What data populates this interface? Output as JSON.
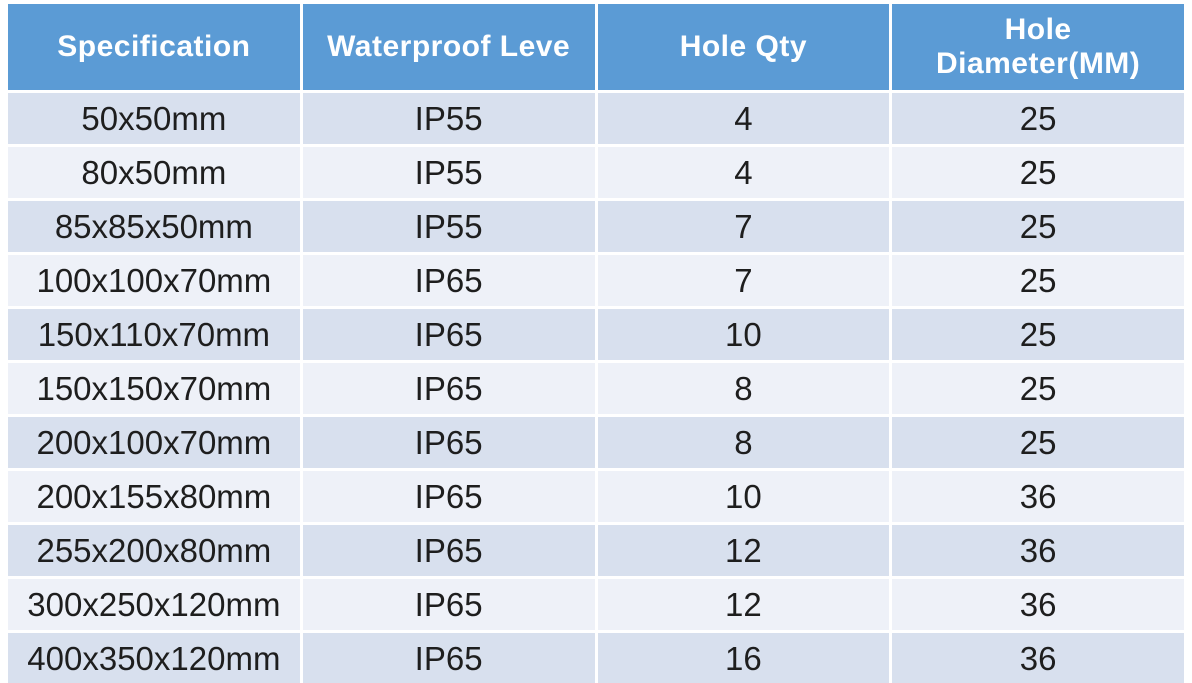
{
  "chart_data": {
    "type": "table",
    "title": "",
    "columns": [
      {
        "label": "Specification"
      },
      {
        "label": "Waterproof Leve"
      },
      {
        "label": "Hole Qty"
      },
      {
        "label": "Hole Diameter(MM)"
      }
    ],
    "rows": [
      [
        "50x50mm",
        "IP55",
        "4",
        "25"
      ],
      [
        "80x50mm",
        "IP55",
        "4",
        "25"
      ],
      [
        "85x85x50mm",
        "IP55",
        "7",
        "25"
      ],
      [
        "100x100x70mm",
        "IP65",
        "7",
        "25"
      ],
      [
        "150x110x70mm",
        "IP65",
        "10",
        "25"
      ],
      [
        "150x150x70mm",
        "IP65",
        "8",
        "25"
      ],
      [
        "200x100x70mm",
        "IP65",
        "8",
        "25"
      ],
      [
        "200x155x80mm",
        "IP65",
        "10",
        "36"
      ],
      [
        "255x200x80mm",
        "IP65",
        "12",
        "36"
      ],
      [
        "300x250x120mm",
        "IP65",
        "12",
        "36"
      ],
      [
        "400x350x120mm",
        "IP65",
        "16",
        "36"
      ]
    ],
    "layout": {
      "header_background": "#5b9bd5",
      "header_text_color": "#ffffff",
      "row_color_odd": "#d8e0ee",
      "row_color_even": "#eef1f8",
      "separator_color": "#ffffff",
      "text_color": "#1e1e1e"
    }
  }
}
